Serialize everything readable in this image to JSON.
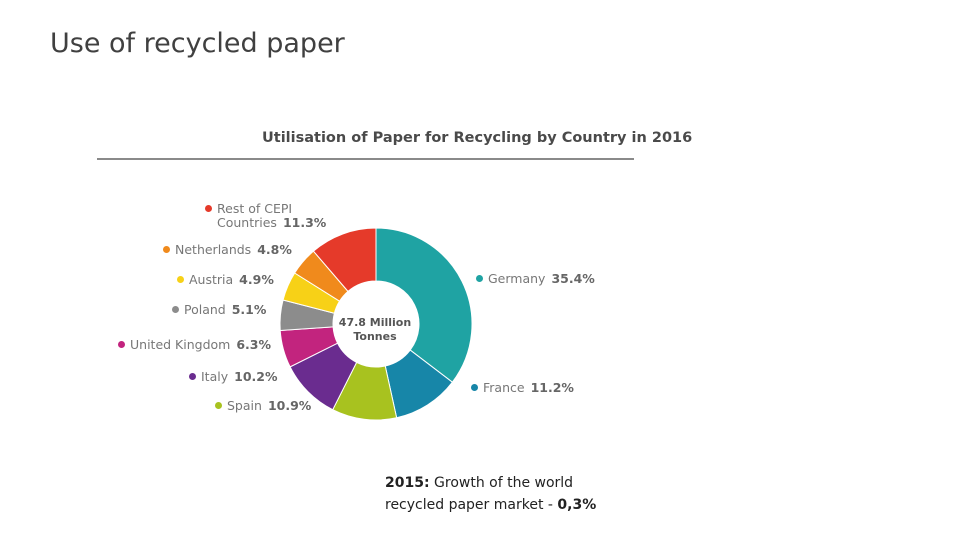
{
  "slide": {
    "title": "Use of recycled paper"
  },
  "chart_data": {
    "type": "pie",
    "title": "Utilisation of Paper for Recycling by Country in 2016",
    "center_label_line1": "47.8 Million",
    "center_label_line2": "Tonnes",
    "donut": true,
    "start": "top",
    "slices": [
      {
        "label": "Germany",
        "value": 35.4,
        "value_label": "35.4%",
        "color": "#1fa3a3"
      },
      {
        "label": "France",
        "value": 11.2,
        "value_label": "11.2%",
        "color": "#1786a8"
      },
      {
        "label": "Spain",
        "value": 10.9,
        "value_label": "10.9%",
        "color": "#a8c21f"
      },
      {
        "label": "Italy",
        "value": 10.2,
        "value_label": "10.2%",
        "color": "#6a2c8f"
      },
      {
        "label": "United Kingdom",
        "value": 6.3,
        "value_label": "6.3%",
        "color": "#c2247e"
      },
      {
        "label": "Poland",
        "value": 5.1,
        "value_label": "5.1%",
        "color": "#8c8c8c"
      },
      {
        "label": "Austria",
        "value": 4.9,
        "value_label": "4.9%",
        "color": "#f7d117"
      },
      {
        "label": "Netherlands",
        "value": 4.8,
        "value_label": "4.8%",
        "color": "#f08a1c"
      },
      {
        "label": "Rest of CEPI Countries",
        "value": 11.3,
        "value_label": "11.3%",
        "color": "#e53a2a"
      }
    ]
  },
  "legend": {
    "rest_line1": "Rest of CEPI",
    "rest_line2": "Countries"
  },
  "note": {
    "prefix": "2015:",
    "text": " Growth of the world recycled paper market - ",
    "value": "0,3%"
  }
}
